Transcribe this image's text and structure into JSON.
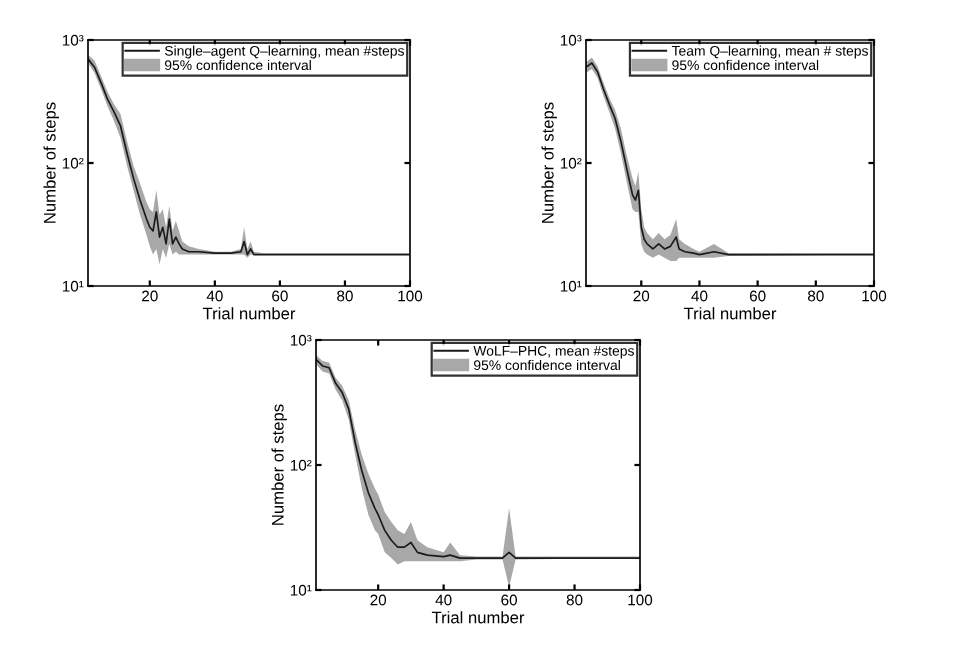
{
  "chart_data": [
    {
      "type": "line",
      "xlabel": "Trial number",
      "ylabel": "Number of steps",
      "log": "y",
      "legend": "top right",
      "grid": false,
      "xlim": [
        1,
        100
      ],
      "xticks": [
        20,
        40,
        60,
        80,
        100
      ],
      "ylim": [
        10,
        1000
      ],
      "yticks": [
        {
          "value": 10,
          "label": "10¹"
        },
        {
          "value": 100,
          "label": "10²"
        },
        {
          "value": 1000,
          "label": "10³"
        }
      ],
      "annotations": [
        "95% confidence interval"
      ],
      "series": [
        {
          "name": "Single–agent Q–learning, mean #steps",
          "color": "#1a1a1a",
          "x": [
            1,
            3,
            5,
            7,
            9,
            11,
            13,
            15,
            17,
            19,
            20,
            21,
            22,
            23,
            24,
            25,
            26,
            27,
            28,
            29,
            30,
            32,
            35,
            40,
            45,
            48,
            49,
            50,
            51,
            52,
            55,
            60,
            100
          ],
          "values": [
            700,
            600,
            450,
            330,
            260,
            200,
            120,
            75,
            50,
            35,
            30,
            28,
            40,
            25,
            30,
            22,
            35,
            22,
            25,
            22,
            20,
            19,
            19,
            18.5,
            18.5,
            19,
            23,
            18,
            20,
            18,
            18,
            18,
            18
          ],
          "lower": [
            650,
            540,
            400,
            290,
            220,
            160,
            95,
            60,
            38,
            26,
            21,
            18,
            20,
            15,
            20,
            17,
            22,
            18,
            19,
            18,
            18,
            18,
            18,
            18,
            18,
            18,
            18,
            17,
            18,
            18,
            18,
            18,
            18
          ],
          "upper": [
            760,
            680,
            510,
            380,
            300,
            250,
            150,
            95,
            68,
            48,
            42,
            40,
            60,
            38,
            42,
            30,
            45,
            28,
            34,
            28,
            23,
            21,
            20,
            19,
            19,
            20,
            30,
            20,
            23,
            19,
            18.5,
            18.5,
            18.5
          ]
        }
      ]
    },
    {
      "type": "line",
      "xlabel": "Trial number",
      "ylabel": "Number of steps",
      "log": "y",
      "legend": "top right",
      "grid": false,
      "xlim": [
        1,
        100
      ],
      "xticks": [
        20,
        40,
        60,
        80,
        100
      ],
      "ylim": [
        10,
        1000
      ],
      "yticks": [
        {
          "value": 10,
          "label": "10¹"
        },
        {
          "value": 100,
          "label": "10²"
        },
        {
          "value": 1000,
          "label": "10³"
        }
      ],
      "annotations": [
        "95% confidence interval"
      ],
      "series": [
        {
          "name": "Team Q–learning, mean # steps",
          "color": "#1a1a1a",
          "x": [
            1,
            3,
            5,
            7,
            9,
            11,
            13,
            15,
            17,
            18,
            19,
            20,
            21,
            22,
            24,
            26,
            28,
            30,
            32,
            33,
            35,
            38,
            40,
            45,
            50,
            100
          ],
          "values": [
            600,
            650,
            550,
            400,
            300,
            230,
            150,
            90,
            55,
            50,
            60,
            30,
            24,
            22,
            20,
            22,
            20,
            21,
            25,
            20,
            19,
            18.5,
            18,
            19,
            18,
            18
          ],
          "lower": [
            540,
            580,
            490,
            350,
            260,
            190,
            120,
            70,
            42,
            40,
            40,
            22,
            19,
            18,
            17,
            18,
            17,
            16,
            16,
            17,
            17,
            17,
            17,
            17,
            17.5,
            18
          ],
          "upper": [
            660,
            720,
            610,
            450,
            340,
            270,
            190,
            115,
            75,
            65,
            85,
            42,
            30,
            27,
            24,
            27,
            24,
            26,
            35,
            24,
            22,
            20,
            19,
            22,
            18.5,
            18.5
          ]
        }
      ]
    },
    {
      "type": "line",
      "xlabel": "Trial number",
      "ylabel": "Number of steps",
      "log": "y",
      "legend": "top right",
      "grid": false,
      "xlim": [
        1,
        100
      ],
      "xticks": [
        20,
        40,
        60,
        80,
        100
      ],
      "ylim": [
        10,
        1000
      ],
      "yticks": [
        {
          "value": 10,
          "label": "10¹"
        },
        {
          "value": 100,
          "label": "10²"
        },
        {
          "value": 1000,
          "label": "10³"
        }
      ],
      "annotations": [
        "95% confidence interval"
      ],
      "series": [
        {
          "name": "WoLF–PHC, mean #steps",
          "color": "#1a1a1a",
          "x": [
            1,
            3,
            5,
            7,
            9,
            11,
            13,
            15,
            17,
            19,
            20,
            22,
            24,
            26,
            28,
            30,
            32,
            35,
            40,
            42,
            45,
            50,
            58,
            60,
            62,
            100
          ],
          "values": [
            700,
            620,
            600,
            450,
            380,
            280,
            150,
            90,
            60,
            45,
            40,
            30,
            25,
            22,
            22,
            24,
            20,
            19,
            18.5,
            19,
            18,
            18,
            18,
            20,
            18,
            18
          ],
          "lower": [
            640,
            560,
            540,
            400,
            330,
            230,
            120,
            65,
            40,
            30,
            28,
            20,
            18,
            16,
            17,
            17,
            17,
            17,
            17,
            17,
            17,
            17.5,
            17.5,
            10.5,
            17.5,
            18
          ],
          "upper": [
            760,
            680,
            660,
            500,
            430,
            330,
            190,
            120,
            85,
            65,
            58,
            42,
            35,
            30,
            28,
            35,
            25,
            22,
            20,
            24,
            19,
            18.5,
            18.5,
            45,
            18.5,
            18.5
          ]
        }
      ]
    }
  ]
}
